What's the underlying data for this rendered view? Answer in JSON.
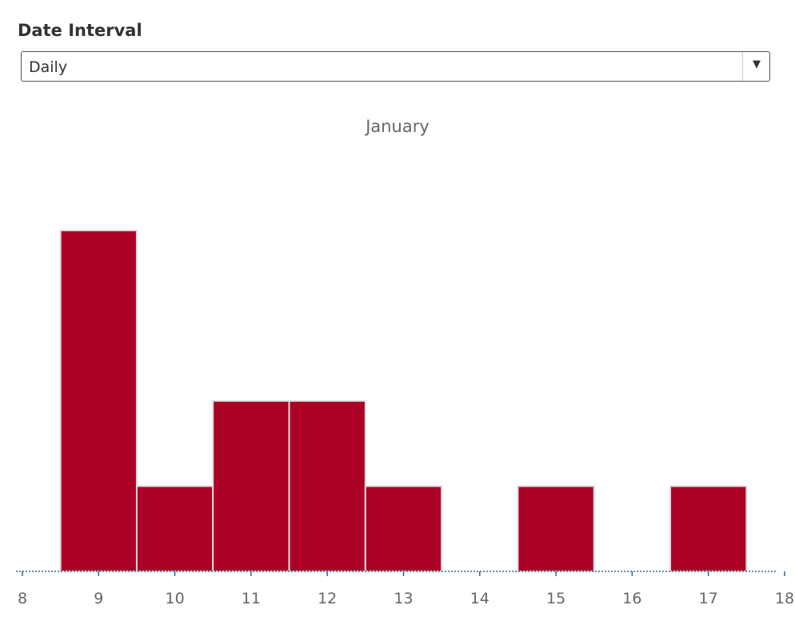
{
  "filter": {
    "title": "Date Interval",
    "selected": "Daily"
  },
  "chart_data": {
    "type": "bar",
    "title": "January",
    "xlabel": "",
    "ylabel": "",
    "categories": [
      9,
      10,
      11,
      12,
      13,
      14,
      15,
      16,
      17
    ],
    "values": [
      4,
      1,
      2,
      2,
      1,
      0,
      1,
      0,
      1
    ],
    "x_ticks": [
      8,
      9,
      10,
      11,
      12,
      13,
      14,
      15,
      16,
      17,
      18
    ],
    "xlim": [
      8,
      18
    ],
    "ylim": [
      0,
      4
    ],
    "grid": false,
    "bar_color": "#ab0125",
    "bar_stroke": "#dddddd",
    "axis_color": "#336699"
  }
}
